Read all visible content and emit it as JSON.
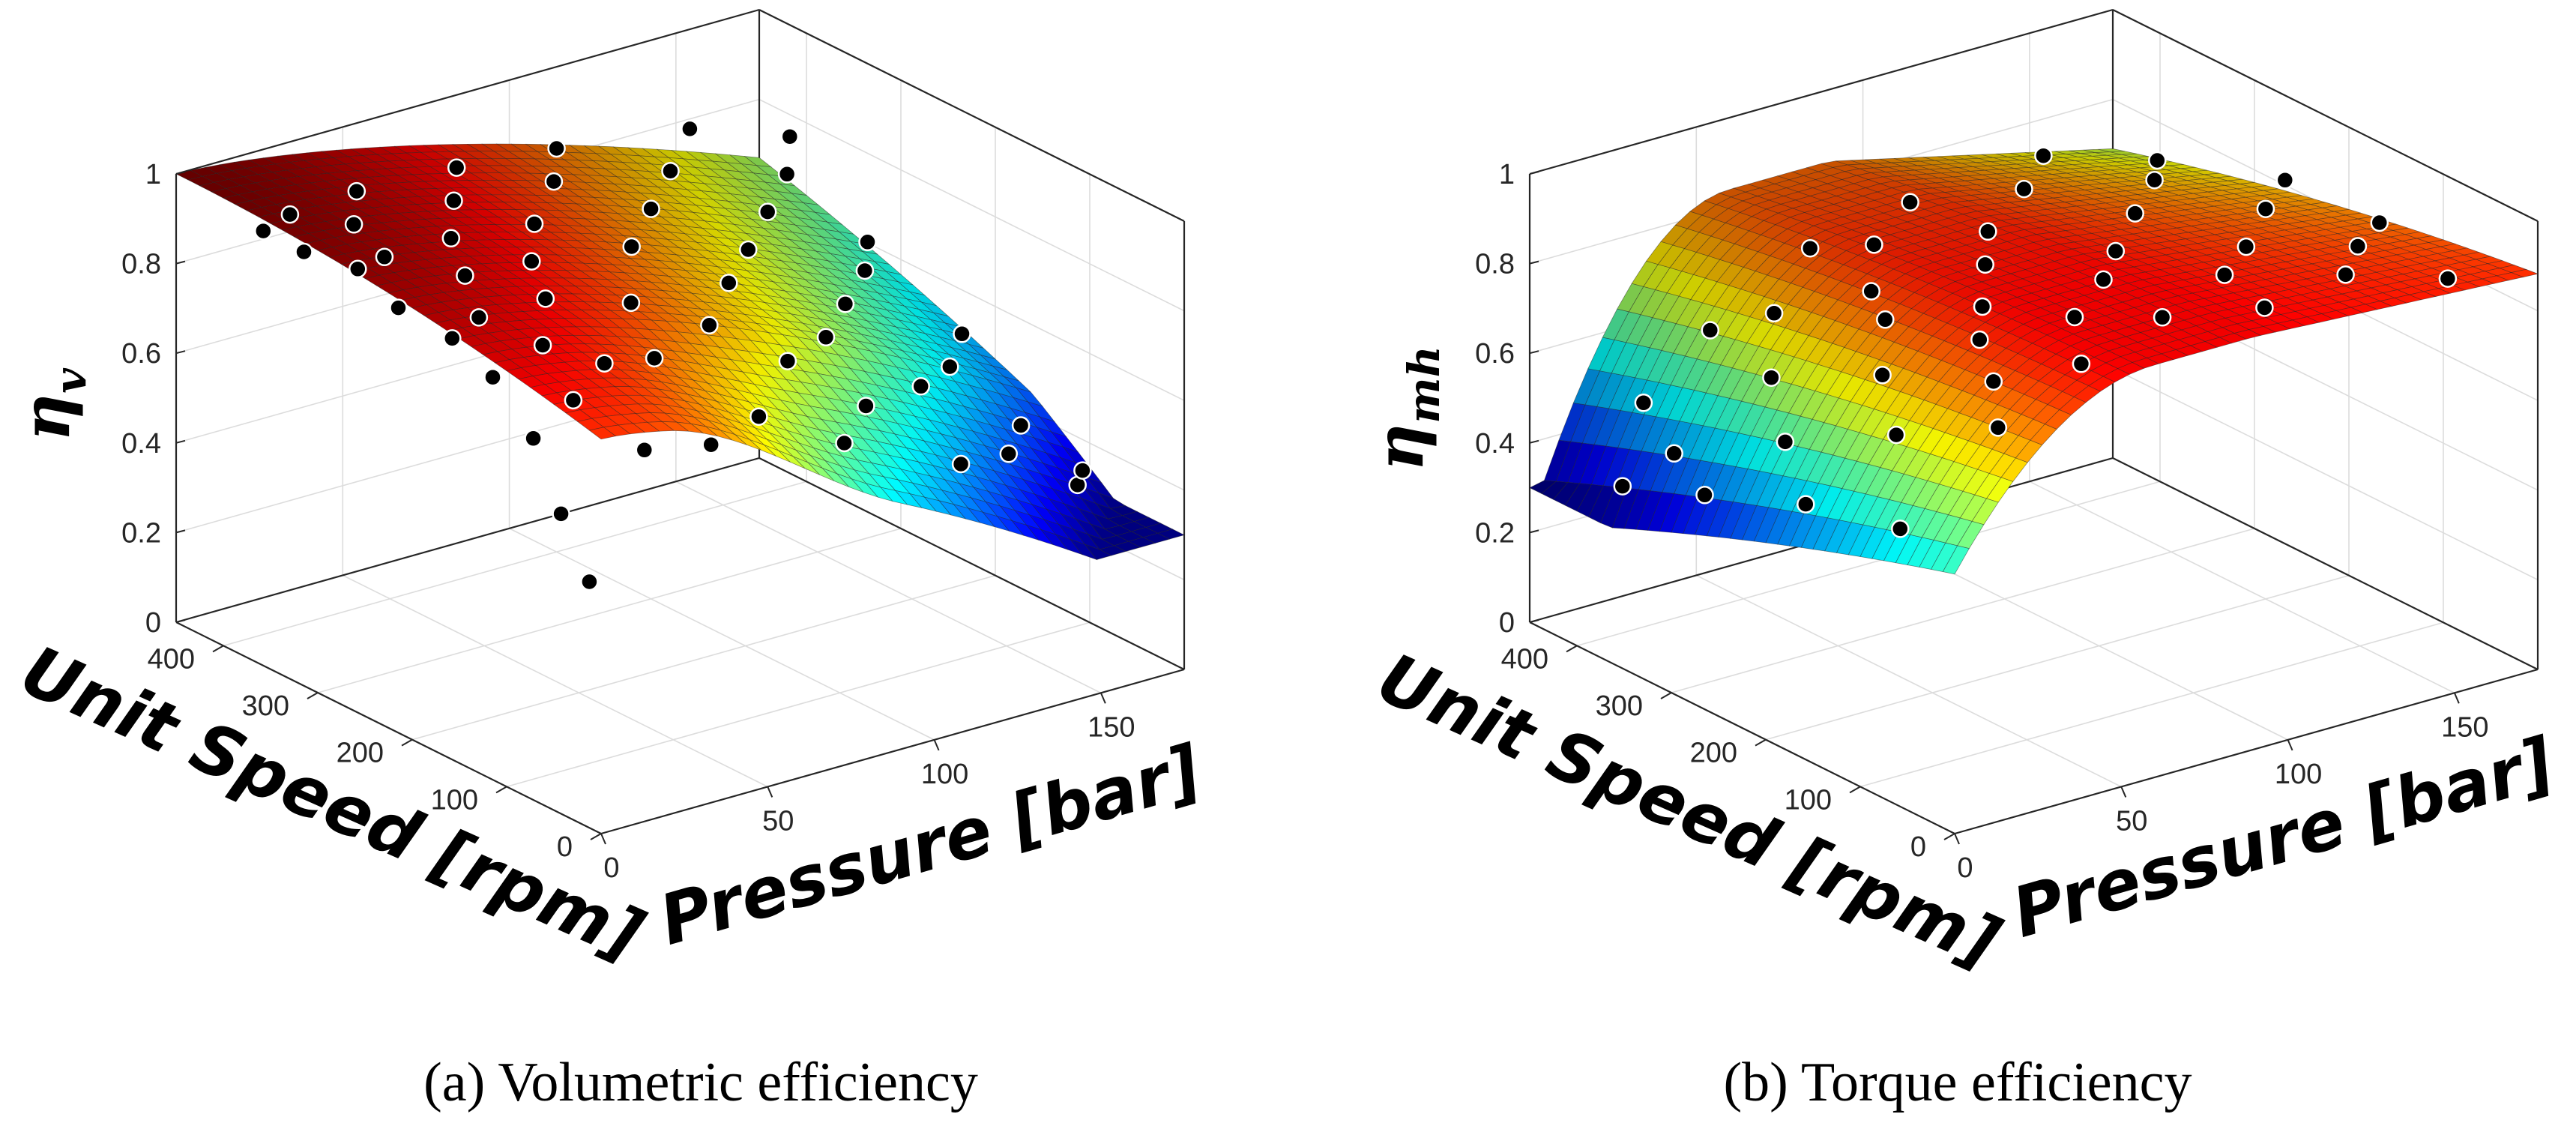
{
  "chart_data": [
    {
      "type": "surface3d",
      "caption": "(a) Volumetric efficiency",
      "xlabel": "Pressure [bar]",
      "ylabel": "Unit Speed [rpm]",
      "zlabel": "η",
      "zlabel_sub": "v",
      "x_range": [
        0,
        175
      ],
      "y_range": [
        0,
        450
      ],
      "z_range": [
        0,
        1
      ],
      "x_ticks": [
        "0",
        "50",
        "100",
        "150"
      ],
      "y_ticks": [
        "0",
        "100",
        "200",
        "300",
        "400"
      ],
      "z_ticks": [
        "0",
        "0.2",
        "0.4",
        "0.6",
        "0.8",
        "1"
      ],
      "colormap": "jet",
      "surface_min": 0.3,
      "surface_max": 1.0,
      "measured_points": [
        {
          "p": 5,
          "n": 30,
          "eta": 0.52
        },
        {
          "p": 5,
          "n": 60,
          "eta": 0.64
        },
        {
          "p": 8,
          "n": 100,
          "eta": 0.76
        },
        {
          "p": 10,
          "n": 150,
          "eta": 0.84
        },
        {
          "p": 12,
          "n": 200,
          "eta": 0.87
        },
        {
          "p": 10,
          "n": 250,
          "eta": 0.89
        },
        {
          "p": 12,
          "n": 300,
          "eta": 0.92
        },
        {
          "p": 10,
          "n": 350,
          "eta": 0.91
        },
        {
          "p": 12,
          "n": 400,
          "eta": 0.9
        },
        {
          "p": 20,
          "n": 100,
          "eta": 0.82
        },
        {
          "p": 20,
          "n": 200,
          "eta": 0.9
        },
        {
          "p": 20,
          "n": 300,
          "eta": 0.93
        },
        {
          "p": 20,
          "n": 400,
          "eta": 0.92
        },
        {
          "p": 25,
          "n": 150,
          "eta": 0.88
        },
        {
          "p": 25,
          "n": 350,
          "eta": 0.94
        },
        {
          "p": 30,
          "n": 60,
          "eta": 0.73
        },
        {
          "p": 30,
          "n": 250,
          "eta": 0.92
        },
        {
          "p": 35,
          "n": 120,
          "eta": 0.85
        },
        {
          "p": 40,
          "n": 200,
          "eta": 0.9
        },
        {
          "p": 40,
          "n": 300,
          "eta": 0.93
        },
        {
          "p": 40,
          "n": 400,
          "eta": 0.93
        },
        {
          "p": 50,
          "n": 60,
          "eta": 0.7
        },
        {
          "p": 50,
          "n": 120,
          "eta": 0.83
        },
        {
          "p": 50,
          "n": 250,
          "eta": 0.91
        },
        {
          "p": 55,
          "n": 350,
          "eta": 0.93
        },
        {
          "p": 60,
          "n": 180,
          "eta": 0.87
        },
        {
          "p": 65,
          "n": 300,
          "eta": 0.91
        },
        {
          "p": 70,
          "n": 80,
          "eta": 0.7
        },
        {
          "p": 70,
          "n": 400,
          "eta": 0.92
        },
        {
          "p": 75,
          "n": 150,
          "eta": 0.82
        },
        {
          "p": 80,
          "n": 250,
          "eta": 0.88
        },
        {
          "p": 85,
          "n": 350,
          "eta": 0.91
        },
        {
          "p": 90,
          "n": 60,
          "eta": 0.62
        },
        {
          "p": 90,
          "n": 120,
          "eta": 0.74
        },
        {
          "p": 95,
          "n": 200,
          "eta": 0.82
        },
        {
          "p": 100,
          "n": 300,
          "eta": 0.87
        },
        {
          "p": 100,
          "n": 400,
          "eta": 0.9
        },
        {
          "p": 105,
          "n": 90,
          "eta": 0.64
        },
        {
          "p": 110,
          "n": 150,
          "eta": 0.72
        },
        {
          "p": 115,
          "n": 250,
          "eta": 0.8
        },
        {
          "p": 120,
          "n": 350,
          "eta": 0.86
        },
        {
          "p": 125,
          "n": 60,
          "eta": 0.5
        },
        {
          "p": 130,
          "n": 120,
          "eta": 0.6
        },
        {
          "p": 130,
          "n": 200,
          "eta": 0.7
        },
        {
          "p": 135,
          "n": 300,
          "eta": 0.79
        },
        {
          "p": 140,
          "n": 400,
          "eta": 0.86
        },
        {
          "p": 145,
          "n": 80,
          "eta": 0.46
        },
        {
          "p": 150,
          "n": 160,
          "eta": 0.56
        },
        {
          "p": 150,
          "n": 250,
          "eta": 0.68
        },
        {
          "p": 155,
          "n": 350,
          "eta": 0.78
        },
        {
          "p": 160,
          "n": 60,
          "eta": 0.38
        },
        {
          "p": 160,
          "n": 120,
          "eta": 0.45
        },
        {
          "p": 165,
          "n": 200,
          "eta": 0.56
        },
        {
          "p": 165,
          "n": 300,
          "eta": 0.66
        },
        {
          "p": 170,
          "n": 400,
          "eta": 0.78
        },
        {
          "p": 170,
          "n": 90,
          "eta": 0.36
        }
      ]
    },
    {
      "type": "surface3d",
      "caption": "(b) Torque efficiency",
      "xlabel": "Pressure [bar]",
      "ylabel": "Unit Speed [rpm]",
      "zlabel": "η",
      "zlabel_sub": "mh",
      "x_range": [
        0,
        175
      ],
      "y_range": [
        0,
        450
      ],
      "z_range": [
        0,
        1
      ],
      "x_ticks": [
        "0",
        "50",
        "100",
        "150"
      ],
      "y_ticks": [
        "0",
        "100",
        "200",
        "300",
        "400"
      ],
      "z_ticks": [
        "0",
        "0.2",
        "0.4",
        "0.6",
        "0.8",
        "1"
      ],
      "colormap": "jet",
      "surface_min": 0.3,
      "surface_max": 1.0,
      "measured_points": [
        {
          "p": 8,
          "n": 380,
          "eta": 0.36
        },
        {
          "p": 10,
          "n": 300,
          "eta": 0.42
        },
        {
          "p": 12,
          "n": 200,
          "eta": 0.5
        },
        {
          "p": 12,
          "n": 100,
          "eta": 0.55
        },
        {
          "p": 15,
          "n": 350,
          "eta": 0.45
        },
        {
          "p": 20,
          "n": 250,
          "eta": 0.57
        },
        {
          "p": 20,
          "n": 400,
          "eta": 0.5
        },
        {
          "p": 25,
          "n": 150,
          "eta": 0.68
        },
        {
          "p": 30,
          "n": 60,
          "eta": 0.78
        },
        {
          "p": 30,
          "n": 300,
          "eta": 0.64
        },
        {
          "p": 35,
          "n": 200,
          "eta": 0.74
        },
        {
          "p": 40,
          "n": 100,
          "eta": 0.82
        },
        {
          "p": 40,
          "n": 400,
          "eta": 0.62
        },
        {
          "p": 45,
          "n": 350,
          "eta": 0.7
        },
        {
          "p": 50,
          "n": 250,
          "eta": 0.78
        },
        {
          "p": 50,
          "n": 150,
          "eta": 0.84
        },
        {
          "p": 55,
          "n": 60,
          "eta": 0.87
        },
        {
          "p": 60,
          "n": 300,
          "eta": 0.77
        },
        {
          "p": 65,
          "n": 200,
          "eta": 0.83
        },
        {
          "p": 70,
          "n": 120,
          "eta": 0.88
        },
        {
          "p": 70,
          "n": 400,
          "eta": 0.74
        },
        {
          "p": 75,
          "n": 350,
          "eta": 0.79
        },
        {
          "p": 80,
          "n": 250,
          "eta": 0.84
        },
        {
          "p": 85,
          "n": 80,
          "eta": 0.89
        },
        {
          "p": 90,
          "n": 160,
          "eta": 0.88
        },
        {
          "p": 95,
          "n": 300,
          "eta": 0.83
        },
        {
          "p": 100,
          "n": 400,
          "eta": 0.78
        },
        {
          "p": 105,
          "n": 200,
          "eta": 0.87
        },
        {
          "p": 110,
          "n": 60,
          "eta": 0.88
        },
        {
          "p": 115,
          "n": 120,
          "eta": 0.88
        },
        {
          "p": 120,
          "n": 350,
          "eta": 0.82
        },
        {
          "p": 125,
          "n": 250,
          "eta": 0.86
        },
        {
          "p": 130,
          "n": 150,
          "eta": 0.88
        },
        {
          "p": 140,
          "n": 80,
          "eta": 0.87
        },
        {
          "p": 140,
          "n": 400,
          "eta": 0.8
        },
        {
          "p": 145,
          "n": 300,
          "eta": 0.84
        },
        {
          "p": 150,
          "n": 200,
          "eta": 0.87
        },
        {
          "p": 155,
          "n": 120,
          "eta": 0.86
        },
        {
          "p": 160,
          "n": 350,
          "eta": 0.8
        },
        {
          "p": 165,
          "n": 60,
          "eta": 0.83
        },
        {
          "p": 170,
          "n": 250,
          "eta": 0.84
        },
        {
          "p": 170,
          "n": 150,
          "eta": 0.85
        }
      ]
    }
  ]
}
